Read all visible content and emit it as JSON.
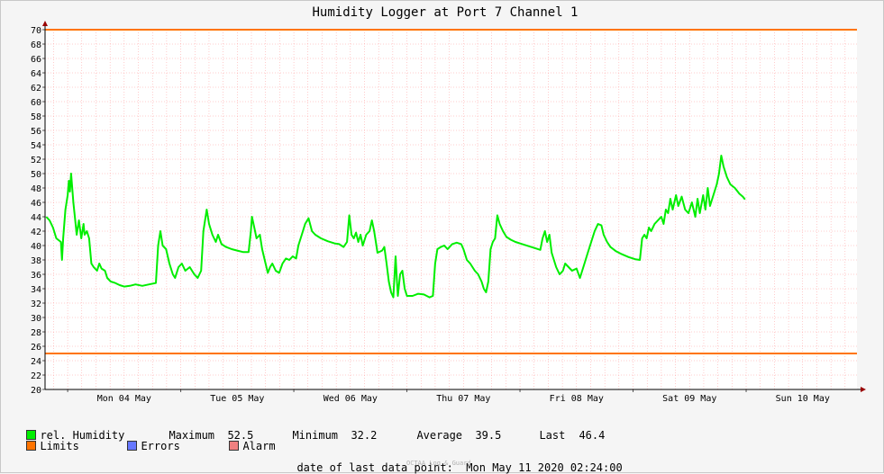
{
  "title": "Humidity Logger at Port 7 Channel 1",
  "colors": {
    "series": "#00ee00",
    "limits": "#ff7400",
    "errors": "#6677ff",
    "alarm": "#f08080",
    "grid": "#ff9999",
    "axis": "#000000",
    "arrow": "#990000"
  },
  "legend": {
    "humidity": "rel. Humidity",
    "limits": "Limits",
    "errors": "Errors",
    "alarm": "Alarm"
  },
  "stats": {
    "maximum_label": "Maximum",
    "maximum_value": "52.5",
    "minimum_label": "Minimum",
    "minimum_value": "32.2",
    "average_label": "Average",
    "average_value": "39.5",
    "last_label": "Last",
    "last_value": "46.4"
  },
  "footer": {
    "date_label": "date of last data point:",
    "date_value": "Mon May 11 2020 02:24:00",
    "watermark": "OCTAA Log & Guard"
  },
  "chart_data": {
    "type": "line",
    "title": "Humidity Logger at Port 7 Channel 1",
    "ylim": [
      20,
      70
    ],
    "yticks": [
      20,
      22,
      24,
      26,
      28,
      30,
      32,
      34,
      36,
      38,
      40,
      42,
      44,
      46,
      48,
      50,
      52,
      54,
      56,
      58,
      60,
      62,
      64,
      66,
      68,
      70
    ],
    "xlim": [
      -0.2,
      6.98
    ],
    "x_unit": "days since Mon 04 May 2020 00:00",
    "x_tick_labels": [
      "Mon 04 May",
      "Tue 05 May",
      "Wed 06 May",
      "Thu 07 May",
      "Fri 08 May",
      "Sat 09 May",
      "Sun 10 May"
    ],
    "x_tick_positions": [
      0,
      1,
      2,
      3,
      4,
      5,
      6
    ],
    "limits": [
      70,
      25
    ],
    "grid": true,
    "series": [
      {
        "name": "rel. Humidity",
        "points": [
          [
            -0.19,
            44
          ],
          [
            -0.16,
            43.5
          ],
          [
            -0.13,
            42.5
          ],
          [
            -0.1,
            41
          ],
          [
            -0.06,
            40.5
          ],
          [
            -0.05,
            38
          ],
          [
            -0.04,
            41
          ],
          [
            -0.02,
            45
          ],
          [
            0.0,
            47
          ],
          [
            0.01,
            49
          ],
          [
            0.02,
            47.5
          ],
          [
            0.03,
            50
          ],
          [
            0.05,
            46
          ],
          [
            0.07,
            43
          ],
          [
            0.08,
            41.5
          ],
          [
            0.1,
            43.5
          ],
          [
            0.12,
            41
          ],
          [
            0.14,
            43
          ],
          [
            0.15,
            41.5
          ],
          [
            0.17,
            42
          ],
          [
            0.19,
            41
          ],
          [
            0.21,
            37.5
          ],
          [
            0.23,
            37
          ],
          [
            0.26,
            36.5
          ],
          [
            0.28,
            37.5
          ],
          [
            0.3,
            36.8
          ],
          [
            0.33,
            36.5
          ],
          [
            0.35,
            35.5
          ],
          [
            0.38,
            35
          ],
          [
            0.42,
            34.8
          ],
          [
            0.46,
            34.5
          ],
          [
            0.5,
            34.3
          ],
          [
            0.55,
            34.4
          ],
          [
            0.6,
            34.6
          ],
          [
            0.66,
            34.4
          ],
          [
            0.72,
            34.6
          ],
          [
            0.78,
            34.8
          ],
          [
            0.8,
            40
          ],
          [
            0.82,
            42
          ],
          [
            0.84,
            40
          ],
          [
            0.87,
            39.5
          ],
          [
            0.9,
            37.5
          ],
          [
            0.93,
            36
          ],
          [
            0.95,
            35.5
          ],
          [
            0.98,
            37
          ],
          [
            1.01,
            37.5
          ],
          [
            1.04,
            36.5
          ],
          [
            1.08,
            37
          ],
          [
            1.12,
            36
          ],
          [
            1.15,
            35.5
          ],
          [
            1.18,
            36.5
          ],
          [
            1.2,
            42
          ],
          [
            1.23,
            45
          ],
          [
            1.25,
            43
          ],
          [
            1.28,
            41.5
          ],
          [
            1.31,
            40.5
          ],
          [
            1.33,
            41.5
          ],
          [
            1.36,
            40.2
          ],
          [
            1.4,
            39.8
          ],
          [
            1.45,
            39.5
          ],
          [
            1.5,
            39.3
          ],
          [
            1.55,
            39.1
          ],
          [
            1.6,
            39.1
          ],
          [
            1.62,
            42
          ],
          [
            1.63,
            44
          ],
          [
            1.65,
            42.5
          ],
          [
            1.67,
            41
          ],
          [
            1.7,
            41.5
          ],
          [
            1.72,
            39.5
          ],
          [
            1.75,
            37.5
          ],
          [
            1.77,
            36.2
          ],
          [
            1.79,
            37
          ],
          [
            1.81,
            37.5
          ],
          [
            1.84,
            36.5
          ],
          [
            1.87,
            36.2
          ],
          [
            1.9,
            37.5
          ],
          [
            1.93,
            38.2
          ],
          [
            1.96,
            38
          ],
          [
            1.99,
            38.5
          ],
          [
            2.02,
            38.2
          ],
          [
            2.04,
            40
          ],
          [
            2.07,
            41.5
          ],
          [
            2.1,
            43
          ],
          [
            2.13,
            43.8
          ],
          [
            2.16,
            42
          ],
          [
            2.19,
            41.5
          ],
          [
            2.24,
            41
          ],
          [
            2.3,
            40.6
          ],
          [
            2.36,
            40.3
          ],
          [
            2.4,
            40.2
          ],
          [
            2.44,
            39.8
          ],
          [
            2.47,
            40.5
          ],
          [
            2.49,
            44.2
          ],
          [
            2.51,
            41.5
          ],
          [
            2.53,
            41
          ],
          [
            2.55,
            41.8
          ],
          [
            2.57,
            40.5
          ],
          [
            2.59,
            41.5
          ],
          [
            2.61,
            40
          ],
          [
            2.64,
            41.5
          ],
          [
            2.67,
            42
          ],
          [
            2.69,
            43.5
          ],
          [
            2.71,
            42
          ],
          [
            2.73,
            40
          ],
          [
            2.74,
            39
          ],
          [
            2.78,
            39.3
          ],
          [
            2.8,
            39.8
          ],
          [
            2.82,
            37.5
          ],
          [
            2.84,
            35
          ],
          [
            2.86,
            33.5
          ],
          [
            2.88,
            32.8
          ],
          [
            2.9,
            38.5
          ],
          [
            2.91,
            35.5
          ],
          [
            2.92,
            33
          ],
          [
            2.94,
            36
          ],
          [
            2.96,
            36.5
          ],
          [
            2.98,
            34
          ],
          [
            3.0,
            33
          ],
          [
            3.05,
            33
          ],
          [
            3.1,
            33.3
          ],
          [
            3.15,
            33.2
          ],
          [
            3.2,
            32.8
          ],
          [
            3.23,
            33
          ],
          [
            3.25,
            37.5
          ],
          [
            3.27,
            39.5
          ],
          [
            3.3,
            39.8
          ],
          [
            3.33,
            40
          ],
          [
            3.36,
            39.5
          ],
          [
            3.4,
            40.2
          ],
          [
            3.44,
            40.4
          ],
          [
            3.48,
            40.2
          ],
          [
            3.5,
            39.5
          ],
          [
            3.53,
            38
          ],
          [
            3.56,
            37.5
          ],
          [
            3.6,
            36.5
          ],
          [
            3.63,
            36
          ],
          [
            3.66,
            35
          ],
          [
            3.68,
            34
          ],
          [
            3.7,
            33.5
          ],
          [
            3.72,
            35
          ],
          [
            3.74,
            39.5
          ],
          [
            3.76,
            40.5
          ],
          [
            3.78,
            41
          ],
          [
            3.8,
            44.2
          ],
          [
            3.82,
            43
          ],
          [
            3.85,
            42
          ],
          [
            3.88,
            41.2
          ],
          [
            3.92,
            40.8
          ],
          [
            3.96,
            40.5
          ],
          [
            4.02,
            40.2
          ],
          [
            4.08,
            39.9
          ],
          [
            4.14,
            39.6
          ],
          [
            4.18,
            39.4
          ],
          [
            4.2,
            41
          ],
          [
            4.22,
            42
          ],
          [
            4.24,
            40.5
          ],
          [
            4.26,
            41.5
          ],
          [
            4.28,
            39
          ],
          [
            4.3,
            38
          ],
          [
            4.32,
            37
          ],
          [
            4.35,
            36
          ],
          [
            4.38,
            36.5
          ],
          [
            4.4,
            37.5
          ],
          [
            4.43,
            37
          ],
          [
            4.46,
            36.5
          ],
          [
            4.5,
            36.8
          ],
          [
            4.53,
            35.5
          ],
          [
            4.55,
            36.5
          ],
          [
            4.57,
            37.5
          ],
          [
            4.6,
            39
          ],
          [
            4.63,
            40.5
          ],
          [
            4.66,
            42
          ],
          [
            4.69,
            43
          ],
          [
            4.72,
            42.8
          ],
          [
            4.74,
            41.5
          ],
          [
            4.77,
            40.5
          ],
          [
            4.8,
            39.8
          ],
          [
            4.85,
            39.2
          ],
          [
            4.9,
            38.8
          ],
          [
            4.96,
            38.4
          ],
          [
            5.02,
            38.1
          ],
          [
            5.06,
            38
          ],
          [
            5.08,
            41
          ],
          [
            5.1,
            41.5
          ],
          [
            5.12,
            41
          ],
          [
            5.14,
            42.5
          ],
          [
            5.16,
            42
          ],
          [
            5.19,
            43
          ],
          [
            5.22,
            43.5
          ],
          [
            5.25,
            44
          ],
          [
            5.27,
            43
          ],
          [
            5.29,
            45
          ],
          [
            5.31,
            44.5
          ],
          [
            5.33,
            46.5
          ],
          [
            5.35,
            45
          ],
          [
            5.38,
            47
          ],
          [
            5.4,
            45.5
          ],
          [
            5.43,
            46.8
          ],
          [
            5.46,
            45
          ],
          [
            5.49,
            44.5
          ],
          [
            5.52,
            46
          ],
          [
            5.55,
            44
          ],
          [
            5.57,
            46.5
          ],
          [
            5.59,
            44.5
          ],
          [
            5.62,
            47
          ],
          [
            5.64,
            45
          ],
          [
            5.66,
            48
          ],
          [
            5.68,
            45.5
          ],
          [
            5.7,
            46.5
          ],
          [
            5.72,
            47.5
          ],
          [
            5.74,
            48.5
          ],
          [
            5.76,
            50
          ],
          [
            5.78,
            52.5
          ],
          [
            5.8,
            51
          ],
          [
            5.83,
            49.5
          ],
          [
            5.86,
            48.5
          ],
          [
            5.9,
            48
          ],
          [
            5.94,
            47.2
          ],
          [
            5.97,
            46.8
          ],
          [
            5.99,
            46.4
          ]
        ]
      }
    ]
  }
}
